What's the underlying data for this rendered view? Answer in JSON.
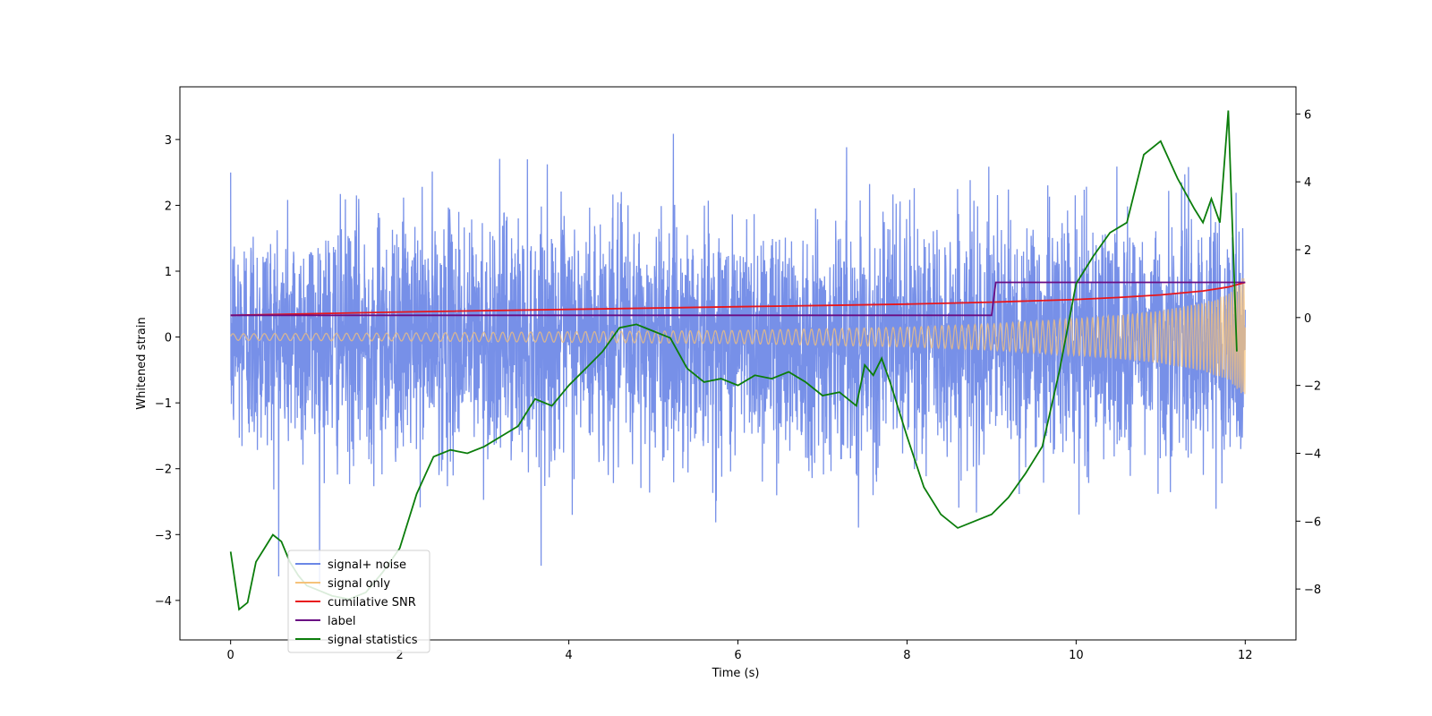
{
  "chart_data": {
    "type": "line",
    "title": "",
    "xlabel": "Time (s)",
    "ylabel": "Whitened strain",
    "y2label": "",
    "xlim": [
      -0.6,
      12.6
    ],
    "ylim": [
      -4.6,
      3.8
    ],
    "y2lim": [
      -9.5,
      6.8
    ],
    "x_ticks": [
      0,
      2,
      4,
      6,
      8,
      10,
      12
    ],
    "y_ticks": [
      -4,
      -3,
      -2,
      -1,
      0,
      1,
      2,
      3
    ],
    "y2_ticks": [
      -8,
      -6,
      -4,
      -2,
      0,
      2,
      4,
      6
    ],
    "grid": false,
    "legend_position": "lower-left",
    "noise": {
      "amplitude_1sigma": 0.9,
      "peak_min": -4.15,
      "peak_max": 3.45,
      "samples": 4096
    },
    "series": [
      {
        "name": "signal+ noise",
        "color": "#6b87e6",
        "axis": "left",
        "kind": "noise",
        "x_range": [
          0,
          12
        ]
      },
      {
        "name": "signal only",
        "color": "#f5c27a",
        "axis": "left",
        "kind": "chirp",
        "envelope": {
          "x": [
            0,
            2,
            4,
            6,
            8,
            9,
            10,
            10.5,
            11,
            11.5,
            11.8,
            12
          ],
          "y": [
            0.05,
            0.06,
            0.08,
            0.1,
            0.15,
            0.2,
            0.28,
            0.33,
            0.4,
            0.52,
            0.65,
            0.95
          ]
        }
      },
      {
        "name": "cumilative SNR",
        "color": "#e8161b",
        "axis": "left",
        "x": [
          0,
          2,
          4,
          6,
          7,
          8,
          9,
          10,
          10.5,
          11,
          11.5,
          11.8,
          12
        ],
        "y": [
          0.33,
          0.38,
          0.42,
          0.46,
          0.48,
          0.5,
          0.53,
          0.57,
          0.6,
          0.64,
          0.7,
          0.76,
          0.83
        ]
      },
      {
        "name": "label",
        "color": "#6a0d83",
        "axis": "left",
        "x": [
          0,
          9,
          9.05,
          12
        ],
        "y": [
          0.33,
          0.33,
          0.83,
          0.83
        ]
      },
      {
        "name": "signal statistics",
        "color": "#0b7d0b",
        "axis": "right",
        "x": [
          0,
          0.1,
          0.2,
          0.3,
          0.4,
          0.5,
          0.6,
          0.7,
          0.8,
          0.9,
          1.0,
          1.2,
          1.4,
          1.6,
          1.8,
          2.0,
          2.2,
          2.4,
          2.6,
          2.8,
          3.0,
          3.2,
          3.4,
          3.6,
          3.8,
          4.0,
          4.2,
          4.4,
          4.6,
          4.8,
          5.0,
          5.2,
          5.4,
          5.6,
          5.8,
          6.0,
          6.2,
          6.4,
          6.6,
          6.8,
          7.0,
          7.2,
          7.4,
          7.5,
          7.6,
          7.7,
          7.8,
          8.0,
          8.2,
          8.4,
          8.6,
          8.8,
          9.0,
          9.2,
          9.4,
          9.6,
          9.8,
          10.0,
          10.2,
          10.4,
          10.6,
          10.8,
          11.0,
          11.2,
          11.4,
          11.5,
          11.6,
          11.7,
          11.8,
          11.9
        ],
        "y": [
          -6.9,
          -8.6,
          -8.4,
          -7.2,
          -6.8,
          -6.4,
          -6.6,
          -7.2,
          -7.6,
          -7.9,
          -8.0,
          -8.2,
          -8.3,
          -8.1,
          -7.5,
          -6.8,
          -5.2,
          -4.1,
          -3.9,
          -4.0,
          -3.8,
          -3.5,
          -3.2,
          -2.4,
          -2.6,
          -2.0,
          -1.5,
          -1.0,
          -0.3,
          -0.2,
          -0.4,
          -0.6,
          -1.5,
          -1.9,
          -1.8,
          -2.0,
          -1.7,
          -1.8,
          -1.6,
          -1.9,
          -2.3,
          -2.2,
          -2.6,
          -1.4,
          -1.7,
          -1.2,
          -1.9,
          -3.5,
          -5.0,
          -5.8,
          -6.2,
          -6.0,
          -5.8,
          -5.3,
          -4.6,
          -3.8,
          -1.6,
          1.0,
          1.8,
          2.5,
          2.8,
          4.8,
          5.2,
          4.1,
          3.2,
          2.8,
          3.5,
          2.8,
          6.1,
          -1.0
        ]
      }
    ]
  }
}
